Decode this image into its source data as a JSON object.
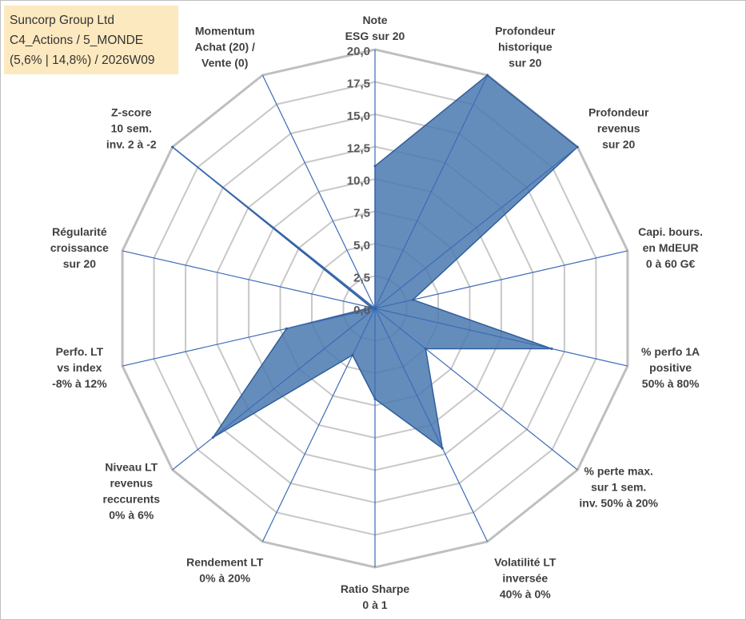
{
  "info": {
    "company": "Suncorp Group Ltd",
    "category": "C4_Actions / 5_MONDE",
    "params": "(5,6% | 14,8%) / 2026W09"
  },
  "colors": {
    "fill": "#4a79b0",
    "stroke": "#2f5e9a",
    "spoke": "#3c6bb5",
    "grid": "#c8c8c8",
    "outer": "#bfbfbf"
  },
  "chart_data": {
    "type": "radar",
    "rmin": 0,
    "rmax": 20,
    "ticks": [
      "0,0",
      "2,5",
      "5,0",
      "7,5",
      "10,0",
      "12,5",
      "15,0",
      "17,5",
      "20,0"
    ],
    "axes": [
      {
        "label": [
          "Note",
          "ESG sur 20"
        ],
        "value": 11
      },
      {
        "label": [
          "Profondeur",
          "historique",
          "sur 20"
        ],
        "value": 20
      },
      {
        "label": [
          "Profondeur",
          "revenus",
          "sur 20"
        ],
        "value": 20
      },
      {
        "label": [
          "Capi. bours.",
          "en MdEUR",
          "0 à 60 G€"
        ],
        "value": 3
      },
      {
        "label": [
          "% perfo 1A",
          "positive",
          "50% à 80%"
        ],
        "value": 14
      },
      {
        "label": [
          "% perte max.",
          "sur 1 sem.",
          "inv. 50% à 20%"
        ],
        "value": 5
      },
      {
        "label": [
          "Volatilité LT",
          "inversée",
          "40% à 0%"
        ],
        "value": 12
      },
      {
        "label": [
          "Ratio Sharpe",
          "0 à 1"
        ],
        "value": 7
      },
      {
        "label": [
          "Rendement LT",
          "0% à 20%"
        ],
        "value": 4
      },
      {
        "label": [
          "Niveau LT",
          "revenus",
          "reccurents",
          "0% à 6%"
        ],
        "value": 16
      },
      {
        "label": [
          "Perfo. LT",
          "vs index",
          "-8% à 12%"
        ],
        "value": 7
      },
      {
        "label": [
          "Régularité",
          "croissance",
          "sur 20"
        ],
        "value": 0.3
      },
      {
        "label": [
          "Z-score",
          "10 sem.",
          "inv. 2 à -2"
        ],
        "value": 20
      },
      {
        "label": [
          "Momentum",
          "Achat (20) /",
          "Vente (0)"
        ],
        "value": 0
      }
    ]
  }
}
